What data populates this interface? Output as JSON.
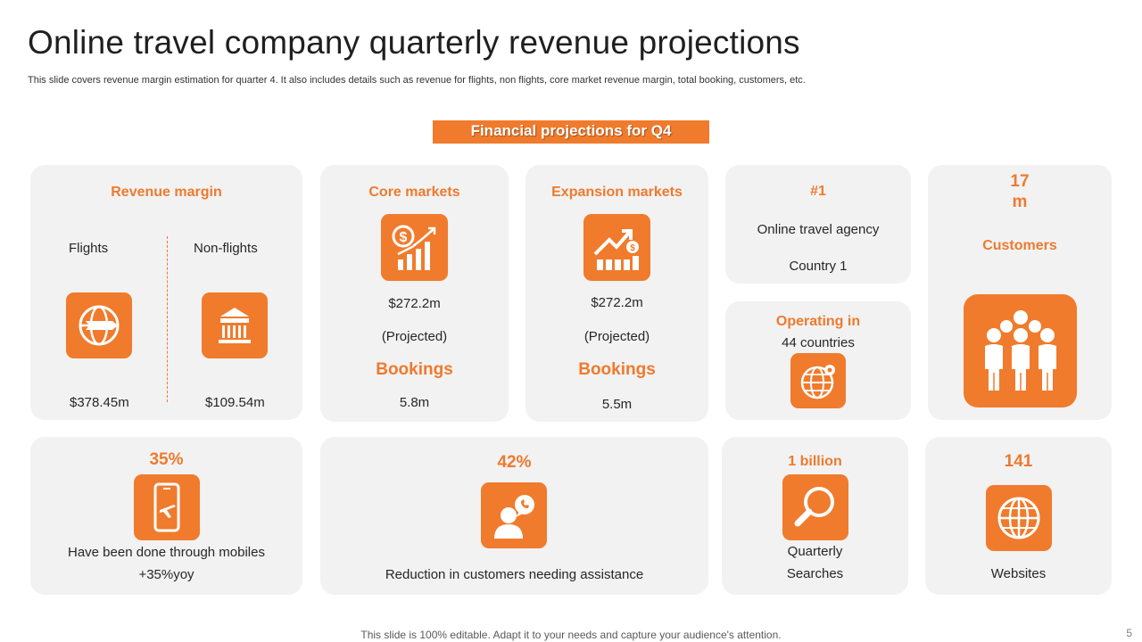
{
  "header": {
    "title": "Online travel company quarterly revenue projections",
    "subtitle": "This slide covers revenue margin estimation for quarter 4. It also includes details such as revenue for flights, non flights, core market revenue margin, total booking, customers, etc."
  },
  "banner": "Financial projections for Q4",
  "revenue_margin": {
    "heading": "Revenue margin",
    "flights_label": "Flights",
    "nonflights_label": "Non-flights",
    "flights_value": "$378.45m",
    "nonflights_value": "$109.54m"
  },
  "core_markets": {
    "heading": "Core markets",
    "value": "$272.2m",
    "note": "(Projected)",
    "bookings_label": "Bookings",
    "bookings_value": "5.8m"
  },
  "expansion_markets": {
    "heading": "Expansion markets",
    "value": "$272.2m",
    "note": "(Projected)",
    "bookings_label": "Bookings",
    "bookings_value": "5.5m"
  },
  "rank": {
    "value": "#1",
    "line1": "Online travel agency",
    "line2": "Country 1"
  },
  "operating": {
    "heading": "Operating in",
    "value": "44 countries"
  },
  "customers": {
    "value_line1": "17",
    "value_line2": "m",
    "label": "Customers"
  },
  "mobiles": {
    "value": "35%",
    "line1": "Have been done through mobiles",
    "line2": "+35%yoy"
  },
  "assistance": {
    "value": "42%",
    "label": "Reduction in customers needing assistance"
  },
  "searches": {
    "value": "1 billion",
    "line1": "Quarterly",
    "line2": "Searches"
  },
  "websites": {
    "value": "141",
    "label": "Websites"
  },
  "footer": "This slide is 100% editable. Adapt it to your needs and capture your audience's attention.",
  "page_number": "5",
  "colors": {
    "accent": "#f07b2c",
    "card": "#f2f2f2"
  },
  "icons": [
    "globe-plane-icon",
    "bank-building-icon",
    "dollar-growth-chart-icon",
    "growth-chart-dollar-icon",
    "globe-pin-icon",
    "crowd-people-icon",
    "mobile-plane-icon",
    "person-chat-icon",
    "magnifier-icon",
    "globe-icon"
  ]
}
